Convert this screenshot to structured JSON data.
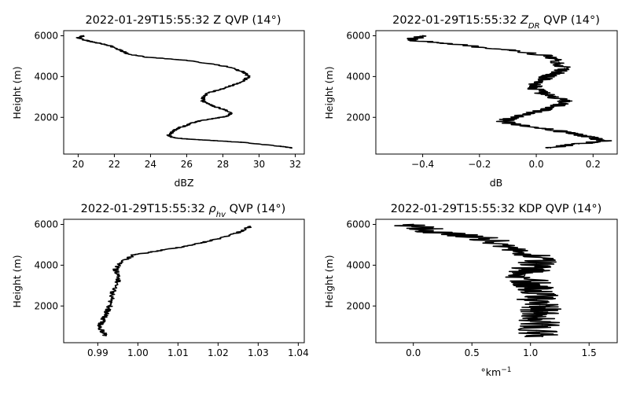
{
  "chart_data": [
    {
      "type": "line",
      "title": "2022-01-29T15:55:32 Z QVP (14°)",
      "title_parts": {
        "prefix": "2022-01-29T15:55:32 ",
        "var": "Z",
        "sub": "",
        "suffix": " QVP (14°)"
      },
      "xlabel": "dBZ",
      "xlabel_parts": {
        "base": "dBZ",
        "sup": ""
      },
      "ylabel": "Height (m)",
      "xlim": [
        19.2,
        32.5
      ],
      "ylim": [
        200,
        6250
      ],
      "xticks": [
        20,
        22,
        24,
        26,
        28,
        30,
        32
      ],
      "xtick_labels": [
        "20",
        "22",
        "24",
        "26",
        "28",
        "30",
        "32"
      ],
      "yticks": [
        2000,
        4000,
        6000
      ],
      "ytick_labels": [
        "2000",
        "4000",
        "6000"
      ],
      "noise": 0.12,
      "series": [
        {
          "x": [
            31.8,
            31.2,
            29.0,
            27.5,
            26.0,
            25.3,
            25.0,
            25.2,
            25.6,
            26.0,
            26.2,
            26.6,
            27.2,
            28.2,
            28.5,
            28.0,
            27.3,
            26.9,
            26.9,
            27.2,
            28.0,
            28.6,
            29.2,
            29.4,
            29.2,
            28.2,
            26.0,
            23.8,
            22.8,
            22.3,
            21.8,
            21.3,
            20.8,
            20.3,
            20.0,
            20.3
          ],
          "y": [
            500,
            580,
            780,
            860,
            940,
            1000,
            1100,
            1300,
            1500,
            1600,
            1700,
            1800,
            1900,
            2050,
            2200,
            2400,
            2600,
            2800,
            3000,
            3200,
            3400,
            3600,
            3800,
            4000,
            4200,
            4500,
            4800,
            4950,
            5100,
            5300,
            5500,
            5600,
            5700,
            5800,
            5900,
            6000
          ]
        }
      ]
    },
    {
      "type": "line",
      "title": "2022-01-29T15:55:32 ZDR QVP (14°)",
      "title_parts": {
        "prefix": "2022-01-29T15:55:32 ",
        "var": "Z",
        "sub": "DR",
        "suffix": " QVP (14°)"
      },
      "xlabel": "dB",
      "xlabel_parts": {
        "base": "dB",
        "sup": ""
      },
      "ylabel": "Height (m)",
      "xlim": [
        -0.565,
        0.285
      ],
      "ylim": [
        200,
        6250
      ],
      "xticks": [
        -0.4,
        -0.2,
        0.0,
        0.2
      ],
      "xtick_labels": [
        "−0.4",
        "−0.2",
        "0.0",
        "0.2"
      ],
      "yticks": [
        2000,
        4000,
        6000
      ],
      "ytick_labels": [
        "2000",
        "4000",
        "6000"
      ],
      "noise": 0.03,
      "series": [
        {
          "x": [
            0.05,
            0.15,
            0.24,
            0.2,
            0.13,
            0.05,
            -0.05,
            -0.12,
            -0.08,
            -0.03,
            0.04,
            0.08,
            0.1,
            0.06,
            0.02,
            0.0,
            0.0,
            0.02,
            0.04,
            0.08,
            0.1,
            0.08,
            0.05,
            -0.1,
            -0.3,
            -0.45,
            -0.4
          ],
          "y": [
            500,
            700,
            850,
            1000,
            1200,
            1400,
            1600,
            1800,
            2000,
            2200,
            2400,
            2600,
            2800,
            3000,
            3200,
            3400,
            3600,
            3800,
            4000,
            4200,
            4400,
            4700,
            5000,
            5300,
            5600,
            5800,
            6000
          ]
        }
      ]
    },
    {
      "type": "line",
      "title": "2022-01-29T15:55:32 ρhv QVP (14°)",
      "title_parts": {
        "prefix": "2022-01-29T15:55:32 ",
        "var": "ρ",
        "sub": "hv",
        "suffix": " QVP (14°)"
      },
      "xlabel": "",
      "xlabel_parts": {
        "base": "",
        "sup": ""
      },
      "ylabel": "Height (m)",
      "xlim": [
        0.9815,
        1.0415
      ],
      "ylim": [
        200,
        6250
      ],
      "xticks": [
        0.99,
        1.0,
        1.01,
        1.02,
        1.03,
        1.04
      ],
      "xtick_labels": [
        "0.99",
        "1.00",
        "1.01",
        "1.02",
        "1.03",
        "1.04"
      ],
      "yticks": [
        2000,
        4000,
        6000
      ],
      "ytick_labels": [
        "2000",
        "4000",
        "6000"
      ],
      "noise": 0.0007,
      "series": [
        {
          "x": [
            0.992,
            0.991,
            0.9905,
            0.991,
            0.9915,
            0.992,
            0.9925,
            0.993,
            0.9935,
            0.994,
            0.995,
            0.995,
            0.9945,
            0.9955,
            0.999,
            1.005,
            1.011,
            1.016,
            1.02,
            1.025,
            1.028
          ],
          "y": [
            550,
            800,
            1000,
            1200,
            1400,
            1600,
            1800,
            2000,
            2400,
            2800,
            3200,
            3500,
            3800,
            4100,
            4500,
            4700,
            4900,
            5100,
            5300,
            5600,
            5900
          ]
        }
      ]
    },
    {
      "type": "line",
      "title": "2022-01-29T15:55:32 KDP QVP (14°)",
      "title_parts": {
        "prefix": "2022-01-29T15:55:32 ",
        "var": "KDP",
        "sub": "",
        "suffix": " QVP (14°)"
      },
      "xlabel": "°km−1",
      "xlabel_parts": {
        "base": "°km",
        "sup": "−1"
      },
      "ylabel": "Height (m)",
      "xlim": [
        -0.32,
        1.74
      ],
      "ylim": [
        200,
        6250
      ],
      "xticks": [
        0.0,
        0.5,
        1.0,
        1.5
      ],
      "xtick_labels": [
        "0.0",
        "0.5",
        "1.0",
        "1.5"
      ],
      "yticks": [
        2000,
        4000,
        6000
      ],
      "ytick_labels": [
        "2000",
        "4000",
        "6000"
      ],
      "noise": 0.18,
      "series": [
        {
          "x": [
            1.1,
            1.05,
            1.1,
            1.05,
            1.1,
            1.08,
            1.05,
            1.1,
            1.05,
            1.0,
            0.95,
            1.0,
            1.05,
            1.0,
            0.8,
            0.5,
            0.1,
            0.0
          ],
          "y": [
            500,
            800,
            1100,
            1400,
            1700,
            2000,
            2300,
            2600,
            2900,
            3200,
            3500,
            3800,
            4100,
            4500,
            5000,
            5400,
            5700,
            6000
          ]
        }
      ]
    }
  ]
}
